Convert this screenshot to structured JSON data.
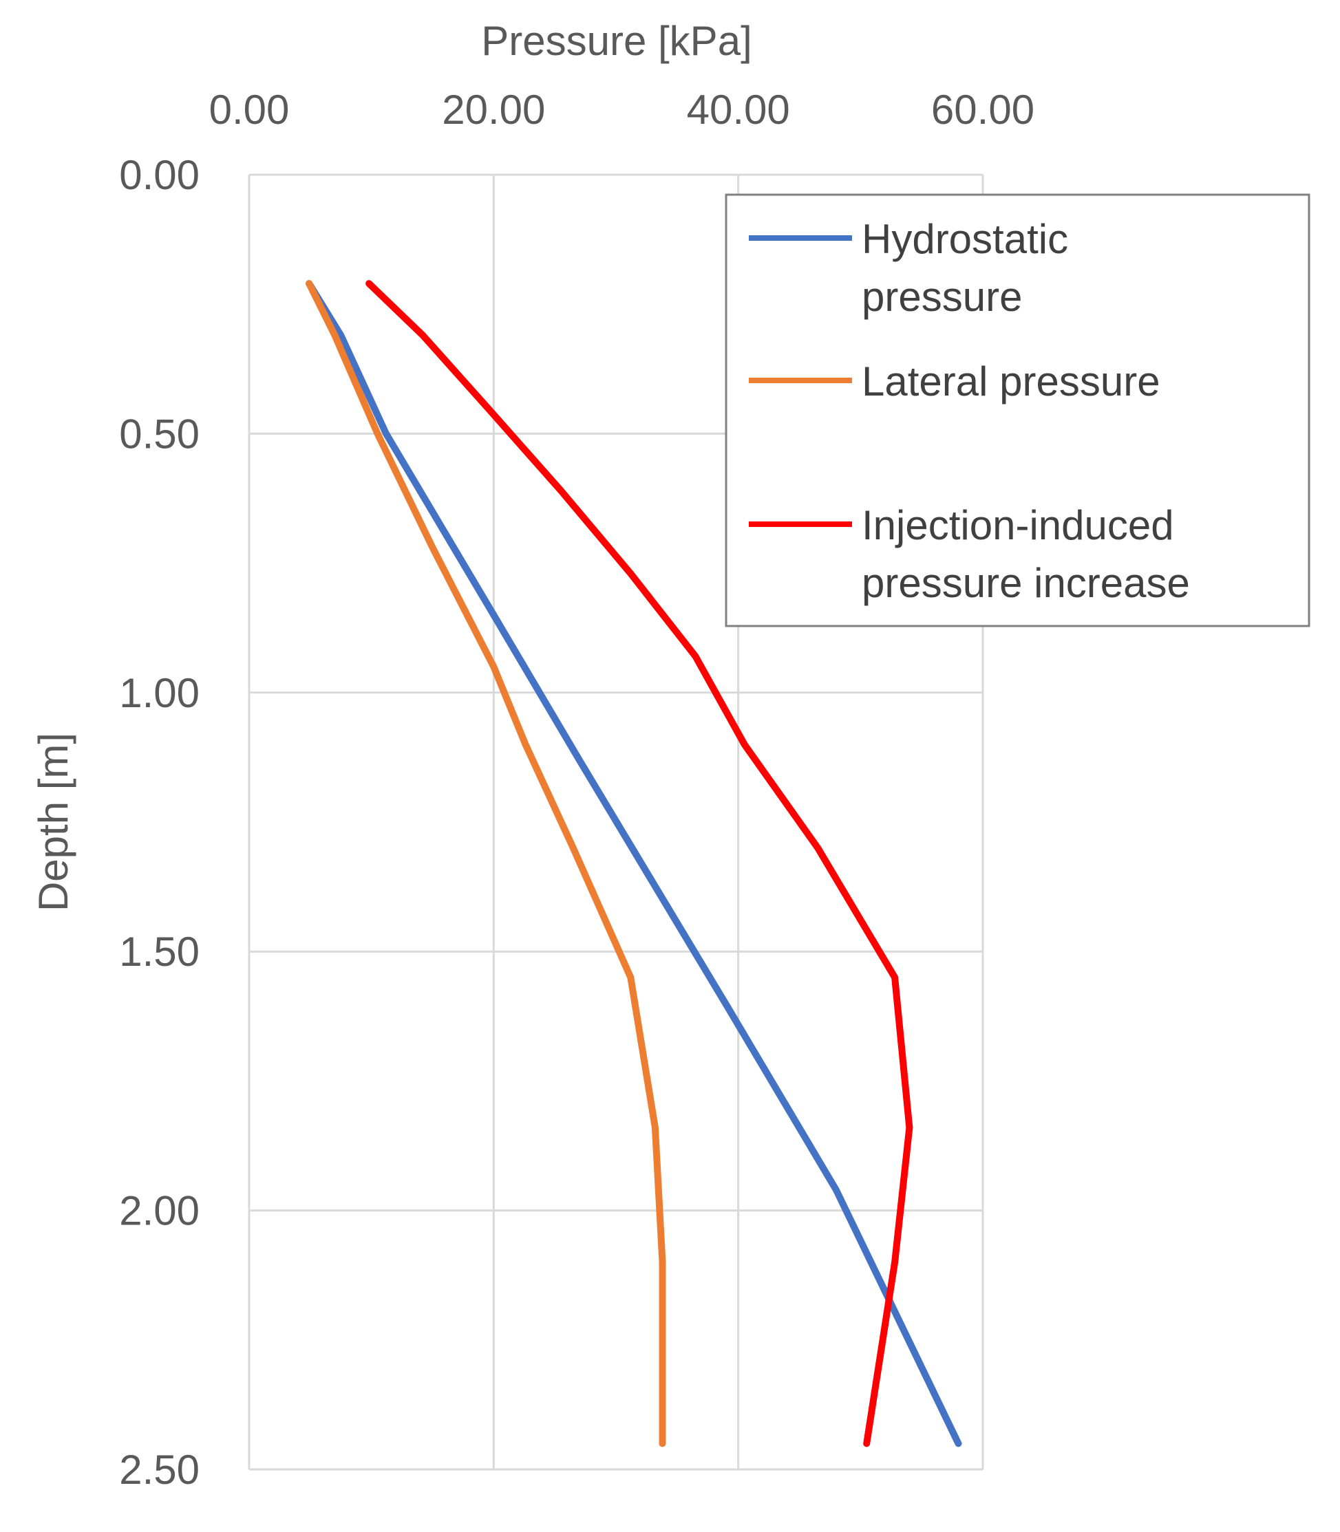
{
  "chart_data": {
    "type": "line",
    "title": "",
    "xlabel": "Pressure [kPa]",
    "ylabel": "Depth [m]",
    "x_axis_position": "top",
    "y_axis_inverted": true,
    "xlim": [
      0,
      60
    ],
    "ylim": [
      0,
      2.5
    ],
    "x_ticks": [
      "0.00",
      "20.00",
      "40.00",
      "60.00"
    ],
    "y_ticks": [
      "0.00",
      "0.50",
      "1.00",
      "1.50",
      "2.00",
      "2.50"
    ],
    "grid": true,
    "legend_position": "top-right",
    "series": [
      {
        "name": "Hydrostatic pressure",
        "color": "#4472C4",
        "points": [
          [
            4.9,
            0.21
          ],
          [
            7.5,
            0.31
          ],
          [
            11.2,
            0.5
          ],
          [
            20.0,
            0.85
          ],
          [
            27.0,
            1.13
          ],
          [
            39.2,
            1.61
          ],
          [
            48.0,
            1.96
          ],
          [
            58.0,
            2.45
          ]
        ]
      },
      {
        "name": "Lateral pressure",
        "color": "#ED7D31",
        "points": [
          [
            4.9,
            0.21
          ],
          [
            7.0,
            0.31
          ],
          [
            10.5,
            0.5
          ],
          [
            15.0,
            0.72
          ],
          [
            20.0,
            0.95
          ],
          [
            22.6,
            1.1
          ],
          [
            26.5,
            1.3
          ],
          [
            31.2,
            1.55
          ],
          [
            33.2,
            1.84
          ],
          [
            33.8,
            2.1
          ],
          [
            33.8,
            2.45
          ]
        ]
      },
      {
        "name": "Injection-induced pressure increase",
        "color": "#FF0000",
        "points": [
          [
            9.8,
            0.21
          ],
          [
            14.2,
            0.31
          ],
          [
            19.5,
            0.45
          ],
          [
            25.5,
            0.61
          ],
          [
            31.2,
            0.77
          ],
          [
            36.5,
            0.93
          ],
          [
            40.5,
            1.1
          ],
          [
            46.5,
            1.3
          ],
          [
            52.8,
            1.55
          ],
          [
            54.0,
            1.84
          ],
          [
            52.8,
            2.1
          ],
          [
            50.5,
            2.45
          ]
        ]
      }
    ]
  }
}
